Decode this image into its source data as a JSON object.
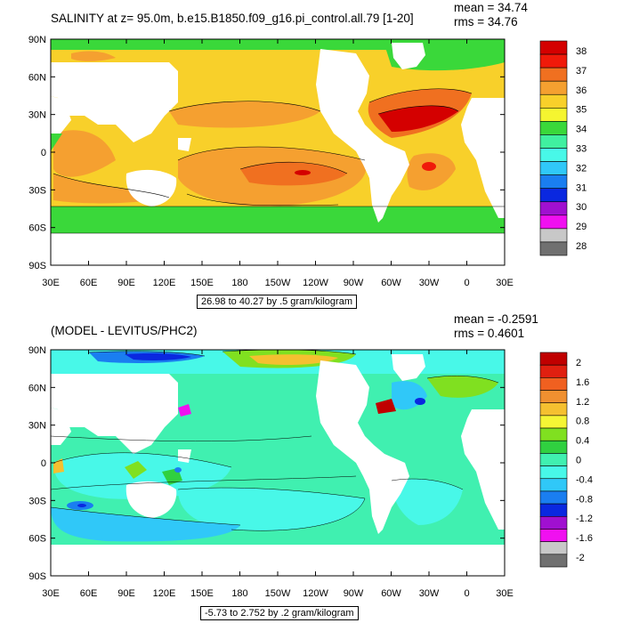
{
  "chart_data": [
    {
      "type": "heatmap",
      "title": "SALINITY at z=  95.0m, b.e15.B1850.f09_g16.pi_control.all.79 [1-20]",
      "stats": {
        "mean": "mean = 34.74",
        "rms": "rms = 34.76"
      },
      "contour_info": "26.98 to 40.27 by .5 gram/kilogram",
      "x_ticks": [
        "30E",
        "60E",
        "90E",
        "120E",
        "150E",
        "180",
        "150W",
        "120W",
        "90W",
        "60W",
        "30W",
        "0",
        "30E"
      ],
      "y_ticks": [
        "90N",
        "60N",
        "30N",
        "0",
        "30S",
        "60S",
        "90S"
      ],
      "colorbar": {
        "labels": [
          "38",
          "37",
          "36",
          "35",
          "34",
          "33",
          "32",
          "31",
          "30",
          "29",
          "28"
        ],
        "colors": [
          "#d40000",
          "#f01a0a",
          "#f07020",
          "#f5a030",
          "#f8d02a",
          "#f5f530",
          "#3ad83a",
          "#40f0a0",
          "#48f8e8",
          "#30c8f8",
          "#1a7ef0",
          "#0a28e0",
          "#a010d0",
          "#f010f0",
          "#c8c8c8",
          "#707070"
        ]
      }
    },
    {
      "type": "heatmap",
      "title": "(MODEL - LEVITUS/PHC2)",
      "stats": {
        "mean": "mean = -0.2591",
        "rms": "rms = 0.4601"
      },
      "contour_info": "-5.73 to 2.752 by .2 gram/kilogram",
      "x_ticks": [
        "30E",
        "60E",
        "90E",
        "120E",
        "150E",
        "180",
        "150W",
        "120W",
        "90W",
        "60W",
        "30W",
        "0",
        "30E"
      ],
      "y_ticks": [
        "90N",
        "60N",
        "30N",
        "0",
        "30S",
        "60S",
        "90S"
      ],
      "colorbar": {
        "labels": [
          "2",
          "1.6",
          "1.2",
          "0.8",
          "0.4",
          "0",
          "-0.4",
          "-0.8",
          "-1.2",
          "-1.6",
          "-2"
        ],
        "colors": [
          "#c00000",
          "#e02010",
          "#f06020",
          "#f09030",
          "#f5c030",
          "#f5f535",
          "#80e020",
          "#30d040",
          "#40f0b0",
          "#48f8e8",
          "#30c8f8",
          "#1a7ef0",
          "#0a28e0",
          "#a010d0",
          "#f010f0",
          "#c8c8c8",
          "#707070"
        ]
      }
    }
  ]
}
